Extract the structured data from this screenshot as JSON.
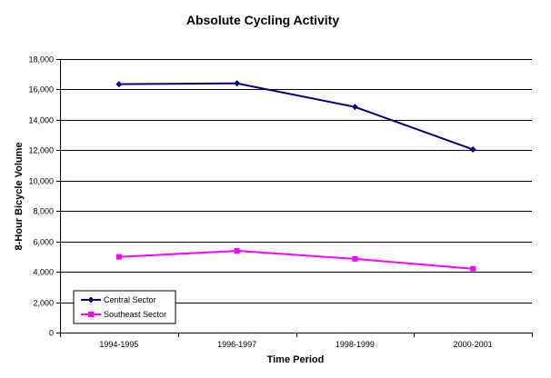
{
  "chart_data": {
    "type": "line",
    "title": "Absolute Cycling Activity",
    "xlabel": "Time Period",
    "ylabel": "8-Hour Bicycle Volume",
    "categories": [
      "1994-1995",
      "1996-1997",
      "1998-1999",
      "2000-2001"
    ],
    "ylim": [
      0,
      18000
    ],
    "yticks": [
      0,
      2000,
      4000,
      6000,
      8000,
      10000,
      12000,
      14000,
      16000,
      18000
    ],
    "ytick_labels": [
      "0",
      "2,000",
      "4,000",
      "6,000",
      "8,000",
      "10,000",
      "12,000",
      "14,000",
      "16,000",
      "18,000"
    ],
    "grid": "horizontal",
    "legend_position": "bottom-left",
    "series": [
      {
        "name": "Central Sector",
        "values": [
          16350,
          16400,
          14850,
          12050
        ],
        "color": "#000080",
        "marker": "diamond"
      },
      {
        "name": "Southeast Sector",
        "values": [
          4980,
          5380,
          4850,
          4200
        ],
        "color": "#FF00FF",
        "marker": "square"
      }
    ]
  }
}
